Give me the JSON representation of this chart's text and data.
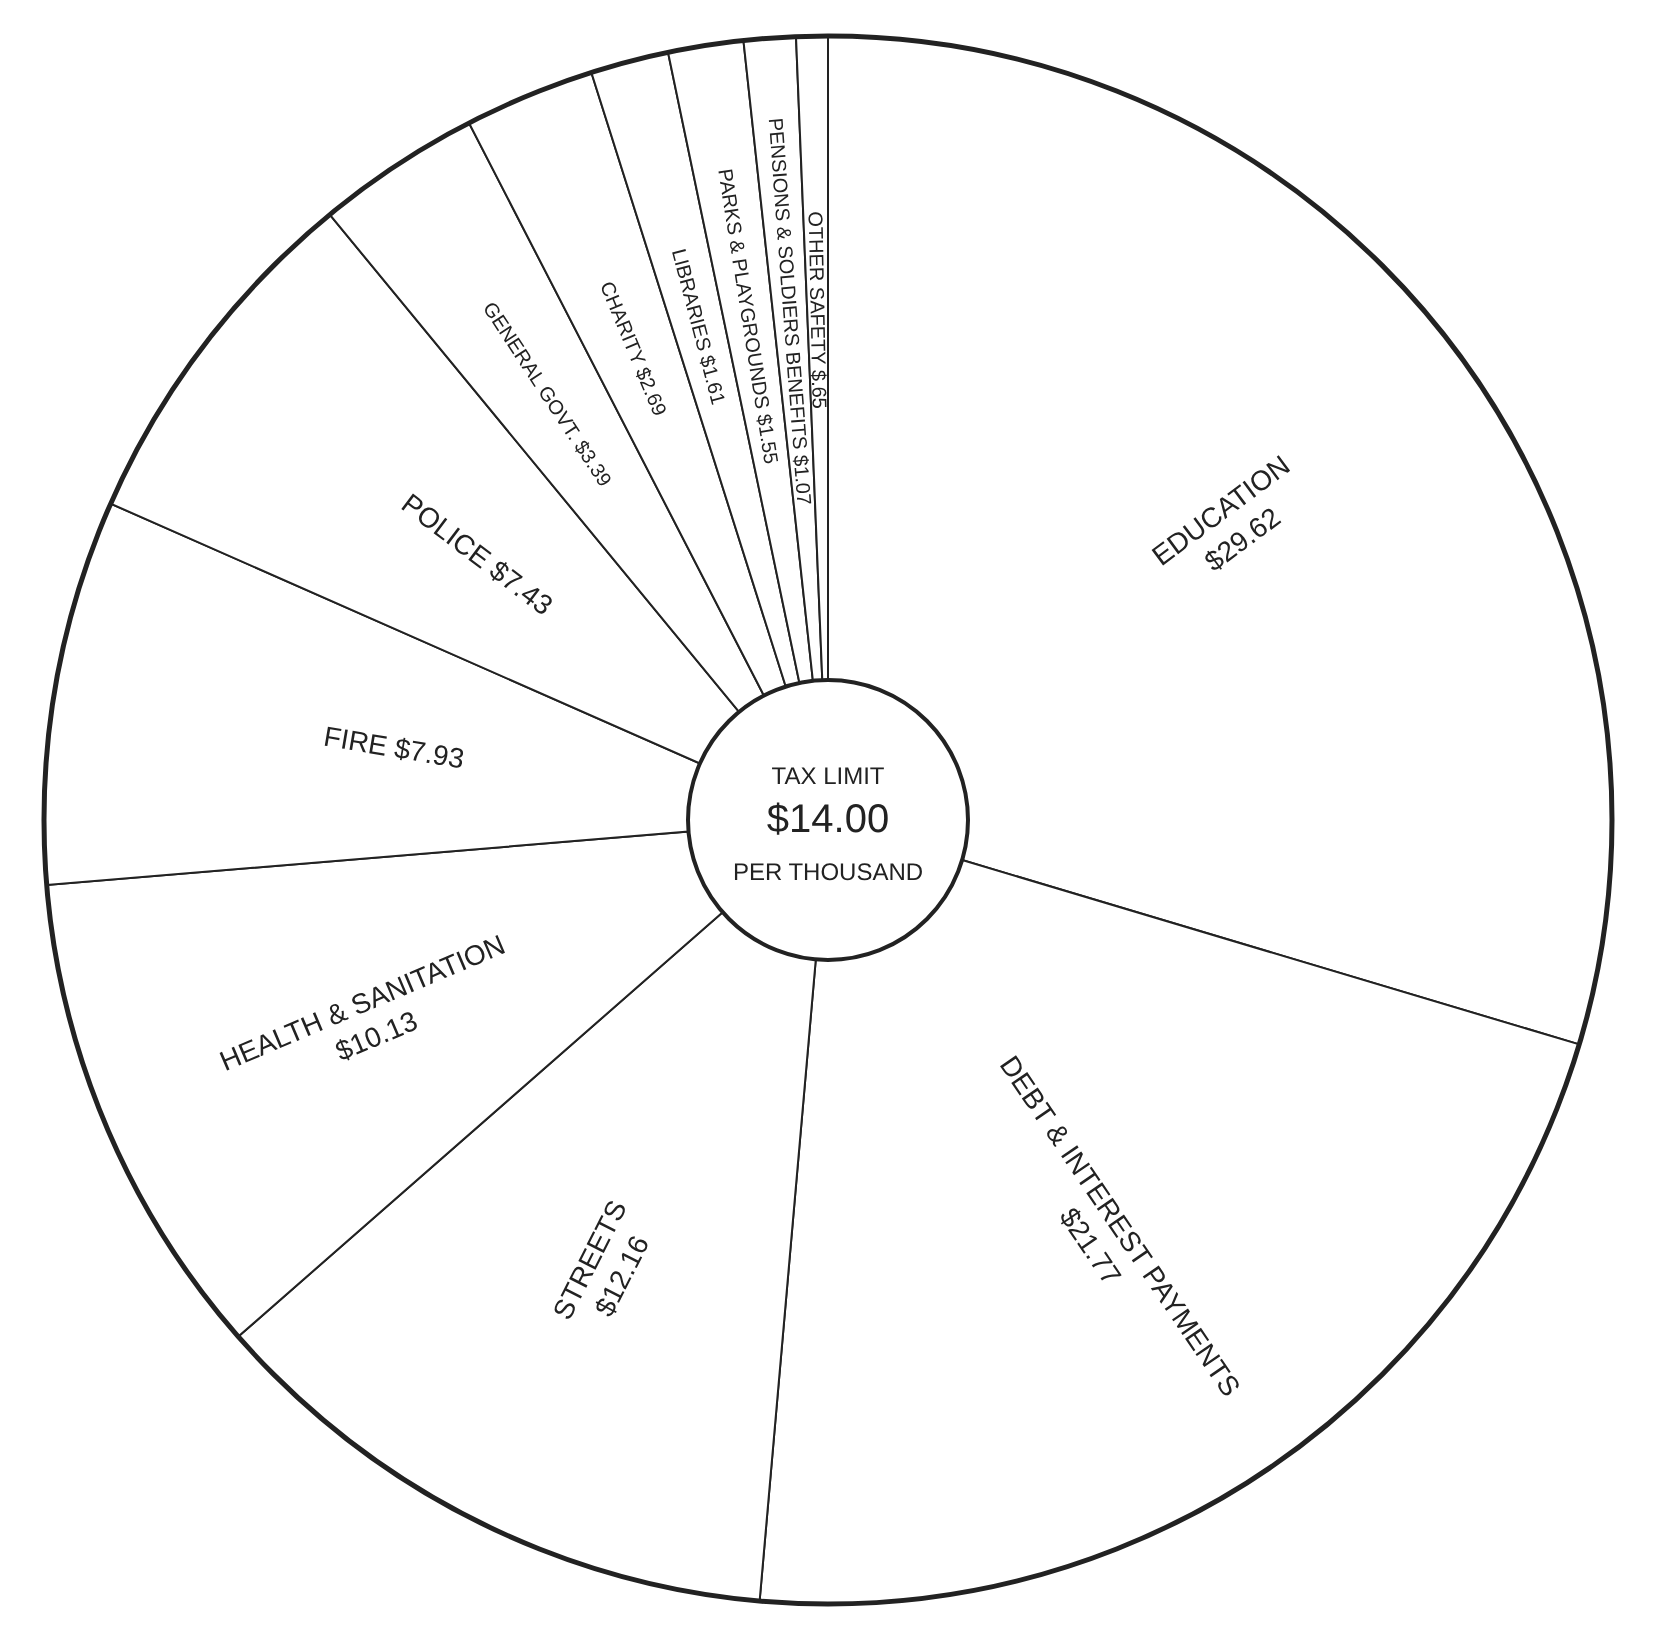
{
  "chart_data": {
    "type": "donut",
    "categories": [
      "EDUCATION",
      "DEBT & INTEREST PAYMENTS",
      "STREETS",
      "HEALTH & SANITATION",
      "FIRE",
      "POLICE",
      "GENERAL GOVT.",
      "CHARITY",
      "LIBRARIES",
      "PARKS & PLAYGROUNDS",
      "PENSIONS & SOLDIERS BENEFITS",
      "OTHER SAFETY"
    ],
    "values": [
      29.62,
      21.77,
      12.16,
      10.13,
      7.93,
      7.43,
      3.39,
      2.69,
      1.61,
      1.55,
      1.07,
      0.65
    ],
    "value_labels": [
      "$29.62",
      "$21.77",
      "$12.16",
      "$10.13",
      "$7.93",
      "$7.43",
      "$3.39",
      "$2.69",
      "$1.61",
      "$1.55",
      "$1.07",
      "$.65"
    ],
    "colors": [
      "#ffffff",
      "#ffffff",
      "#ffffff",
      "#ffffff",
      "#ffffff",
      "#ffffff",
      "#ffffff",
      "#ffffff",
      "#ffffff",
      "#ffffff",
      "#ffffff",
      "#ffffff"
    ],
    "annotations": [
      "TAX LIMIT",
      "$14.00",
      "PER THOUSAND"
    ]
  }
}
